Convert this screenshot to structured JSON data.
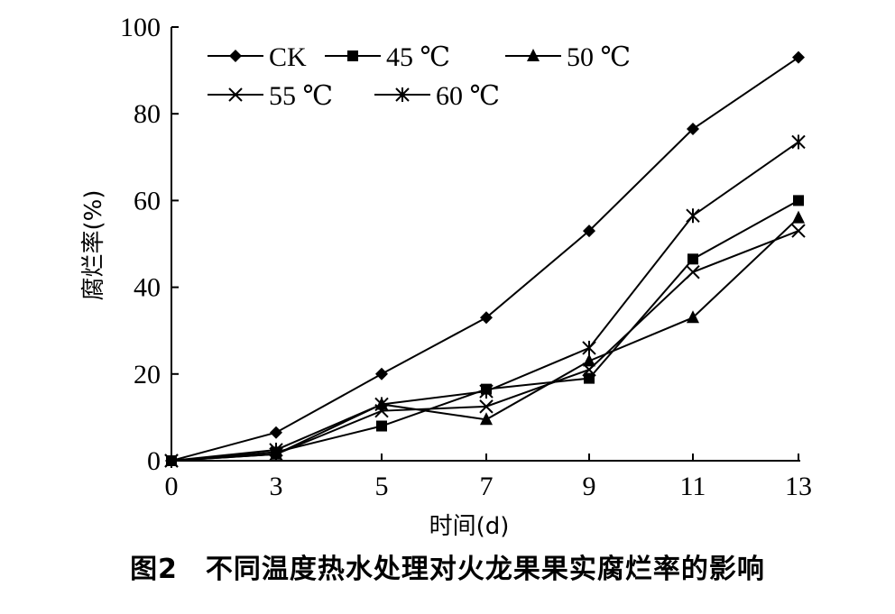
{
  "chart_data": {
    "type": "line",
    "x": [
      0,
      3,
      5,
      7,
      9,
      11,
      13
    ],
    "xlabel": "时间(d)",
    "ylabel": "腐烂率(%)",
    "ylim": [
      0,
      100
    ],
    "yticks": [
      0,
      20,
      40,
      60,
      80,
      100
    ],
    "xticks": [
      "0",
      "3",
      "5",
      "7",
      "9",
      "11",
      "13"
    ],
    "legend_position": "top-left",
    "grid": false,
    "series": [
      {
        "name": "CK",
        "marker": "diamond",
        "values": [
          0,
          6.5,
          20,
          33,
          53,
          76.5,
          93
        ]
      },
      {
        "name": "45 ℃",
        "marker": "square",
        "values": [
          0,
          2,
          8,
          16.5,
          19,
          46.5,
          60
        ]
      },
      {
        "name": "50 ℃",
        "marker": "triangle",
        "values": [
          0,
          1.5,
          13,
          9.5,
          23,
          33,
          56
        ]
      },
      {
        "name": "55 ℃",
        "marker": "x",
        "values": [
          0,
          1.5,
          11.5,
          12.5,
          21,
          43.5,
          53
        ]
      },
      {
        "name": "60 ℃",
        "marker": "star",
        "values": [
          0,
          2.5,
          13,
          16,
          26,
          56.5,
          73.5
        ]
      }
    ]
  },
  "caption": "图2　不同温度热水处理对火龙果果实腐烂率的影响"
}
